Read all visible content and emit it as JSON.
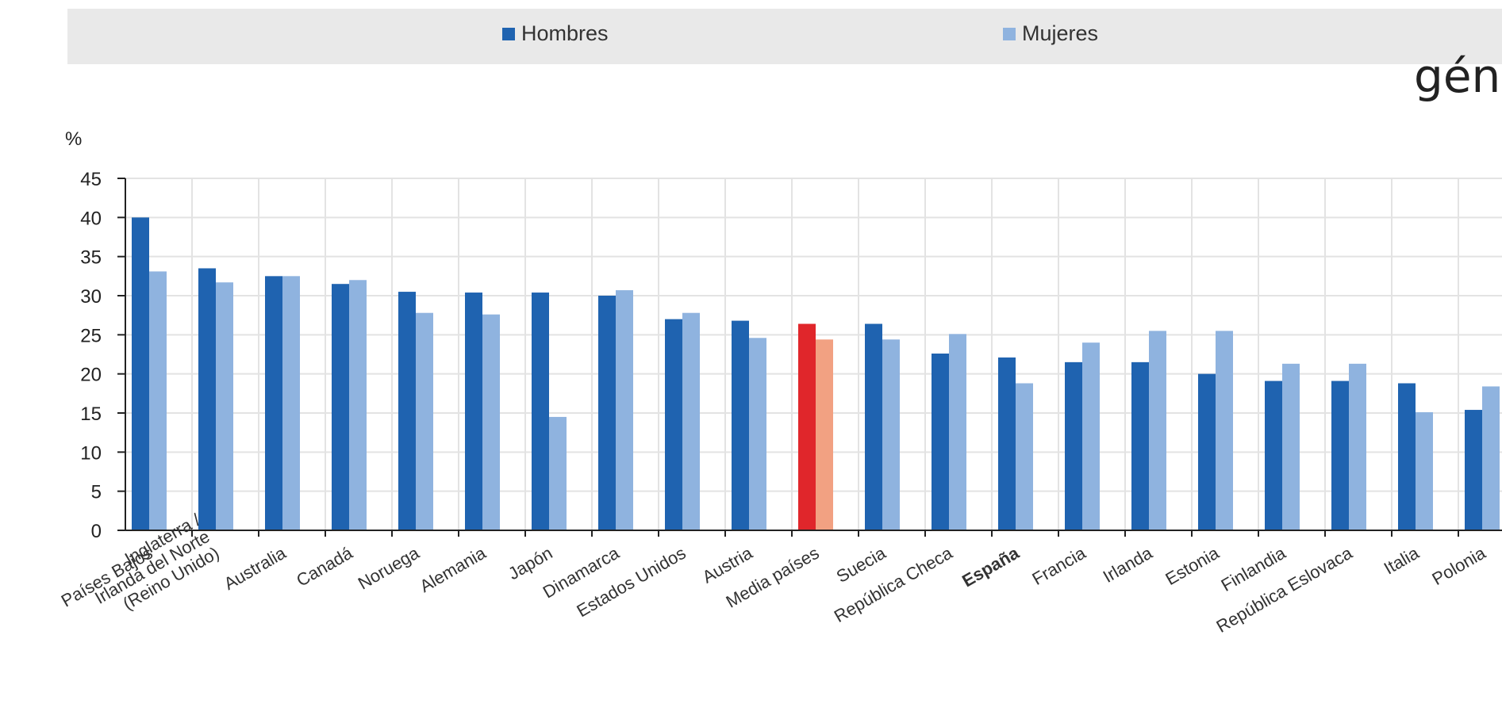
{
  "legend": {
    "hombres_label": "Hombres",
    "mujeres_label": "Mujeres",
    "hombres_color": "#1f63b0",
    "mujeres_color": "#8fb3df"
  },
  "title_fragment": "gén",
  "chart_data": {
    "type": "bar",
    "ylabel": "%",
    "ylim": [
      0,
      45
    ],
    "yticks": [
      0,
      5,
      10,
      15,
      20,
      25,
      30,
      35,
      40,
      45
    ],
    "grid": true,
    "legend_position": "top",
    "categories": [
      "Países Bajos",
      "Inglaterra / Irlanda del Norte (Reino Unido)",
      "Australia",
      "Canadá",
      "Noruega",
      "Alemania",
      "Japón",
      "Dinamarca",
      "Estados Unidos",
      "Austria",
      "Media países",
      "Suecia",
      "República Checa",
      "España",
      "Francia",
      "Irlanda",
      "Estonia",
      "Finlandia",
      "República Eslovaca",
      "Italia",
      "Polonia"
    ],
    "category_lines": [
      [
        "Países Bajos"
      ],
      [
        "Inglaterra /",
        "Irlanda del Norte",
        "(Reino Unido)"
      ],
      [
        "Australia"
      ],
      [
        "Canadá"
      ],
      [
        "Noruega"
      ],
      [
        "Alemania"
      ],
      [
        "Japón"
      ],
      [
        "Dinamarca"
      ],
      [
        "Estados Unidos"
      ],
      [
        "Austria"
      ],
      [
        "Media países"
      ],
      [
        "Suecia"
      ],
      [
        "República Checa"
      ],
      [
        "España"
      ],
      [
        "Francia"
      ],
      [
        "Irlanda"
      ],
      [
        "Estonia"
      ],
      [
        "Finlandia"
      ],
      [
        "República Eslovaca"
      ],
      [
        "Italia"
      ],
      [
        "Polonia"
      ]
    ],
    "bold_category": "España",
    "highlight_category": "Media países",
    "highlight_colors": {
      "hombres": "#e0262b",
      "mujeres": "#f2a182"
    },
    "series": [
      {
        "name": "Hombres",
        "values": [
          40,
          33.5,
          32.5,
          31.5,
          30.5,
          30.4,
          30.4,
          30,
          27,
          26.8,
          26.4,
          26.4,
          22.6,
          22.1,
          21.5,
          21.5,
          20,
          19.1,
          19.1,
          18.8,
          15.4
        ]
      },
      {
        "name": "Mujeres",
        "values": [
          33.1,
          31.7,
          32.5,
          32,
          27.8,
          27.6,
          14.5,
          30.7,
          27.8,
          24.6,
          24.4,
          24.4,
          25.1,
          18.8,
          24,
          25.5,
          25.5,
          21.3,
          21.3,
          15.1,
          18.4
        ]
      }
    ]
  }
}
